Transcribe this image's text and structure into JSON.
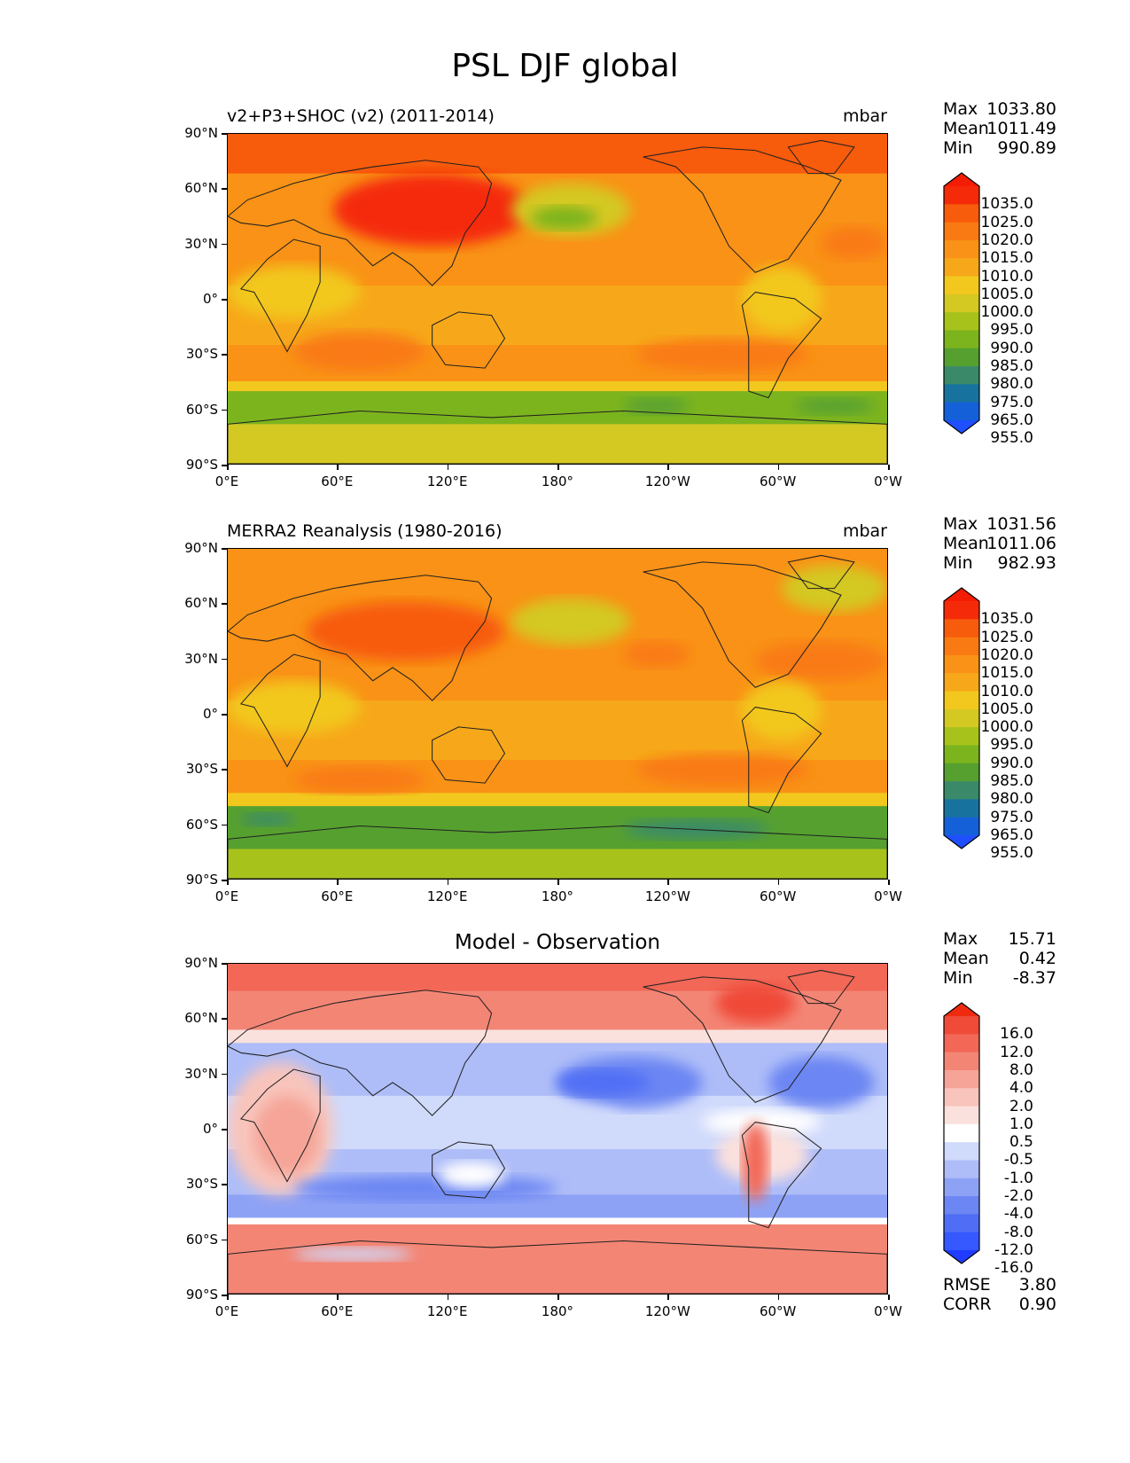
{
  "title": "PSL DJF global",
  "axes": {
    "lat_labels": [
      "90°N",
      "60°N",
      "30°N",
      "0°",
      "30°S",
      "60°S",
      "90°S"
    ],
    "lon_labels": [
      "0°E",
      "60°E",
      "120°E",
      "180°",
      "120°W",
      "60°W",
      "0°W"
    ]
  },
  "panels": [
    {
      "left_title": "v2+P3+SHOC (v2) (2011-2014)",
      "center_title": "",
      "units": "mbar",
      "stats": [
        {
          "label": "Max",
          "value": "1033.80"
        },
        {
          "label": "Mean",
          "value": "1011.49"
        },
        {
          "label": "Min",
          "value": "990.89"
        }
      ],
      "colorbar_labels": [
        "1035.0",
        "1025.0",
        "1020.0",
        "1015.0",
        "1010.0",
        "1005.0",
        "1000.0",
        "995.0",
        "990.0",
        "985.0",
        "980.0",
        "975.0",
        "965.0",
        "955.0"
      ],
      "colors": [
        "#1f4fff",
        "#1460d8",
        "#17739e",
        "#3a8a6a",
        "#56a030",
        "#7cb41e",
        "#a8c21c",
        "#d4c822",
        "#f2c81e",
        "#f7a81a",
        "#f99216",
        "#f97a12",
        "#f75b0c",
        "#f52a08",
        "#f51c04"
      ],
      "extra": []
    },
    {
      "left_title": "MERRA2 Reanalysis (1980-2016)",
      "center_title": "",
      "units": "mbar",
      "stats": [
        {
          "label": "Max",
          "value": "1031.56"
        },
        {
          "label": "Mean",
          "value": "1011.06"
        },
        {
          "label": "Min",
          "value": "982.93"
        }
      ],
      "colorbar_labels": [
        "1035.0",
        "1025.0",
        "1020.0",
        "1015.0",
        "1010.0",
        "1005.0",
        "1000.0",
        "995.0",
        "990.0",
        "985.0",
        "980.0",
        "975.0",
        "965.0",
        "955.0"
      ],
      "colors": [
        "#1f4fff",
        "#1460d8",
        "#17739e",
        "#3a8a6a",
        "#56a030",
        "#7cb41e",
        "#a8c21c",
        "#d4c822",
        "#f2c81e",
        "#f7a81a",
        "#f99216",
        "#f97a12",
        "#f75b0c",
        "#f52a08",
        "#f51c04"
      ],
      "extra": []
    },
    {
      "left_title": "",
      "center_title": "Model - Observation",
      "units": "",
      "stats": [
        {
          "label": "Max",
          "value": "15.71"
        },
        {
          "label": "Mean",
          "value": "0.42"
        },
        {
          "label": "Min",
          "value": "-8.37"
        }
      ],
      "colorbar_labels": [
        "16.0",
        "12.0",
        "8.0",
        "4.0",
        "2.0",
        "1.0",
        "0.5",
        "-0.5",
        "-1.0",
        "-2.0",
        "-4.0",
        "-8.0",
        "-12.0",
        "-16.0"
      ],
      "colors": [
        "#1f3cff",
        "#3558ff",
        "#4f6ef5",
        "#6c86f3",
        "#8ea2f5",
        "#aebdf8",
        "#d0dafb",
        "#ffffff",
        "#fbe1dd",
        "#f8c4bb",
        "#f5a497",
        "#f38575",
        "#f26756",
        "#f04a38",
        "#f02a10"
      ],
      "extra": [
        {
          "label": "RMSE",
          "value": "3.80"
        },
        {
          "label": "CORR",
          "value": "0.90"
        }
      ]
    }
  ]
}
